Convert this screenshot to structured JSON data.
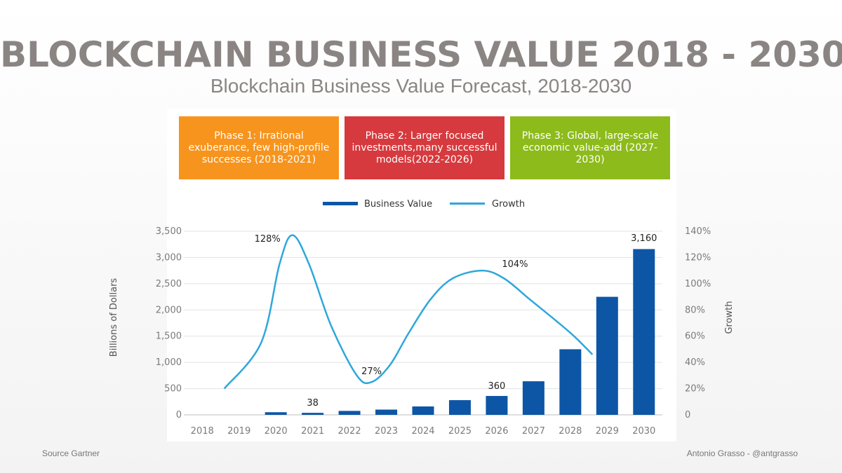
{
  "title": "BLOCKCHAIN BUSINESS VALUE 2018 - 2030",
  "subtitle": "Blockchain Business Value Forecast, 2018-2030",
  "phases": [
    {
      "label": "Phase 1: Irrational exuberance, few high-profile successes (2018-2021)",
      "color": "#f7941d"
    },
    {
      "label": "Phase 2: Larger focused investments,many successful models(2022-2026)",
      "color": "#d63a3e"
    },
    {
      "label": "Phase 3: Global, large-scale economic value-add (2027-2030)",
      "color": "#8dbb1b"
    }
  ],
  "source": "Source Gartner",
  "credit": "Antonio Grasso - @antgrasso",
  "chart_data": {
    "type": "bar",
    "categories": [
      "2018",
      "2019",
      "2020",
      "2021",
      "2022",
      "2023",
      "2024",
      "2025",
      "2026",
      "2027",
      "2028",
      "2029",
      "2030"
    ],
    "series": [
      {
        "name": "Business Value",
        "type": "bar",
        "axis": "left",
        "color": "#0d56a6",
        "values": [
          0,
          0,
          50,
          38,
          75,
          100,
          160,
          280,
          360,
          640,
          1250,
          2250,
          3160
        ]
      },
      {
        "name": "Growth",
        "type": "line",
        "axis": "right",
        "color": "#2ea7dc",
        "curve_points": [
          [
            0.6,
            20
          ],
          [
            1.6,
            55
          ],
          [
            2.1,
            115
          ],
          [
            2.45,
            137
          ],
          [
            2.9,
            115
          ],
          [
            3.5,
            68
          ],
          [
            4.2,
            30
          ],
          [
            4.6,
            25
          ],
          [
            5.1,
            38
          ],
          [
            5.6,
            62
          ],
          [
            6.2,
            88
          ],
          [
            6.8,
            104
          ],
          [
            7.6,
            110
          ],
          [
            8.2,
            104
          ],
          [
            8.9,
            88
          ],
          [
            9.6,
            72
          ],
          [
            10.1,
            60
          ],
          [
            10.6,
            46
          ]
        ]
      }
    ],
    "data_labels": [
      {
        "series": "Growth",
        "x": 2,
        "y": 128,
        "text": "128%"
      },
      {
        "series": "Business Value",
        "x": 3,
        "y": 38,
        "text": "38"
      },
      {
        "series": "Growth",
        "x": 4.6,
        "y": 27,
        "text": "27%"
      },
      {
        "series": "Business Value",
        "x": 8,
        "y": 360,
        "text": "360"
      },
      {
        "series": "Growth",
        "x": 8,
        "y": 104,
        "text": "104%"
      },
      {
        "series": "Business Value",
        "x": 12,
        "y": 3160,
        "text": "3,160"
      }
    ],
    "ylabel": "Billions of Dollars",
    "y2label": "Growth",
    "ylim": [
      0,
      3500
    ],
    "y2lim": [
      0,
      140
    ],
    "yticks": [
      "0",
      "500",
      "1,000",
      "1,500",
      "2,000",
      "2,500",
      "3,000",
      "3,500"
    ],
    "y2ticks": [
      "0",
      "20%",
      "40%",
      "60%",
      "80%",
      "100%",
      "120%",
      "140%"
    ],
    "legend": [
      {
        "name": "Business Value",
        "color": "#0d56a6"
      },
      {
        "name": "Growth",
        "color": "#2ea7dc"
      }
    ],
    "legend_position": "top-center",
    "grid": true
  }
}
